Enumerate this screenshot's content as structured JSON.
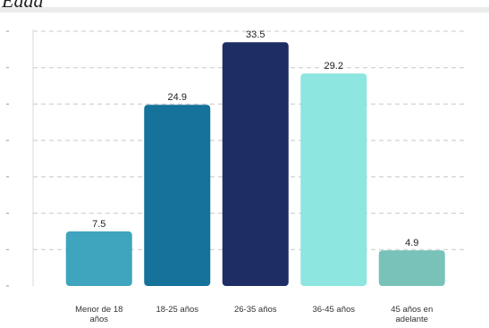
{
  "header": {
    "title": "Edad"
  },
  "chart_data": {
    "type": "bar",
    "title": "",
    "xlabel": "",
    "ylabel": "",
    "categories": [
      [
        "Menor de 18",
        "años"
      ],
      [
        "18-25 años"
      ],
      [
        "26-35 años"
      ],
      [
        "36-45 años"
      ],
      [
        "45 años en",
        "adelante"
      ]
    ],
    "values": [
      7.5,
      24.9,
      33.5,
      29.2,
      4.9
    ],
    "value_labels": [
      "7.5",
      "24.9",
      "33.5",
      "29.2",
      "4.9"
    ],
    "colors": [
      "#3fa4bd",
      "#14729b",
      "#1f2d65",
      "#8de6df",
      "#78c2b9"
    ],
    "ylim": [
      0,
      35
    ],
    "yticks": [
      0,
      5,
      10,
      15,
      20,
      25,
      30,
      35
    ],
    "grid": true,
    "grid_color": "#c8c8c8",
    "legend": "none"
  }
}
